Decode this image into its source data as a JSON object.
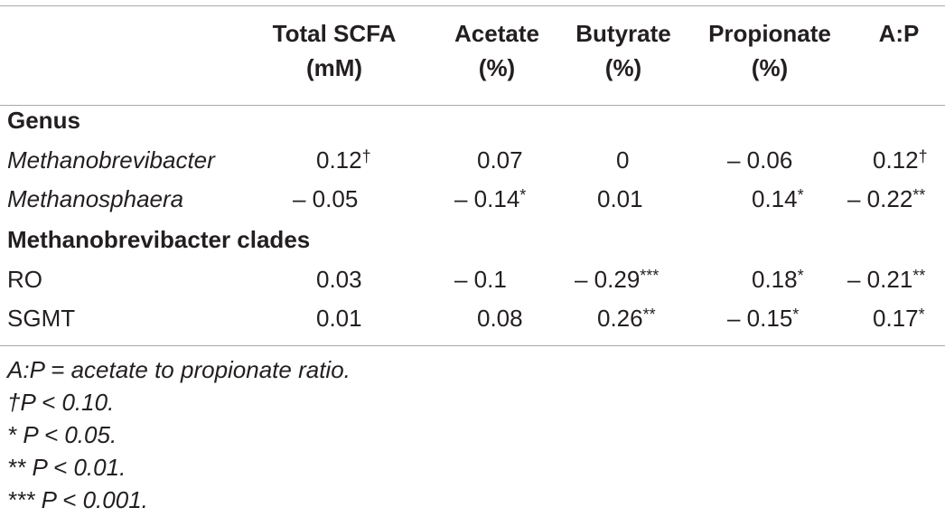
{
  "table": {
    "headers": [
      {
        "line1": "Total SCFA",
        "line2": "(mM)"
      },
      {
        "line1": "Acetate",
        "line2": "(%)"
      },
      {
        "line1": "Butyrate",
        "line2": "(%)"
      },
      {
        "line1": "Propionate",
        "line2": "(%)"
      },
      {
        "line1": "A:P",
        "line2": ""
      }
    ],
    "sections": [
      {
        "title": "Genus",
        "rows": [
          {
            "label": "Methanobrevibacter",
            "cells": [
              {
                "value": "0.12",
                "mark": "†"
              },
              {
                "value": "0.07",
                "mark": ""
              },
              {
                "value": "0",
                "mark": ""
              },
              {
                "value": "– 0.06",
                "mark": ""
              },
              {
                "value": "0.12",
                "mark": "†"
              }
            ]
          },
          {
            "label": "Methanosphaera",
            "cells": [
              {
                "value": "– 0.05",
                "mark": ""
              },
              {
                "value": "– 0.14",
                "mark": "*"
              },
              {
                "value": "0.01",
                "mark": ""
              },
              {
                "value": "0.14",
                "mark": "*"
              },
              {
                "value": "– 0.22",
                "mark": "**"
              }
            ]
          }
        ]
      },
      {
        "title": "Methanobrevibacter clades",
        "rows": [
          {
            "label": "RO",
            "cells": [
              {
                "value": "0.03",
                "mark": ""
              },
              {
                "value": "– 0.1",
                "mark": ""
              },
              {
                "value": "– 0.29",
                "mark": "***"
              },
              {
                "value": "0.18",
                "mark": "*"
              },
              {
                "value": "– 0.21",
                "mark": "**"
              }
            ]
          },
          {
            "label": "SGMT",
            "cells": [
              {
                "value": "0.01",
                "mark": ""
              },
              {
                "value": "0.08",
                "mark": ""
              },
              {
                "value": "0.26",
                "mark": "**"
              },
              {
                "value": "– 0.15",
                "mark": "*"
              },
              {
                "value": "0.17",
                "mark": "*"
              }
            ]
          }
        ]
      }
    ]
  },
  "footnotes": [
    "A:P = acetate to propionate ratio.",
    "†P < 0.10.",
    "* P < 0.05.",
    "** P < 0.01.",
    "*** P < 0.001."
  ]
}
